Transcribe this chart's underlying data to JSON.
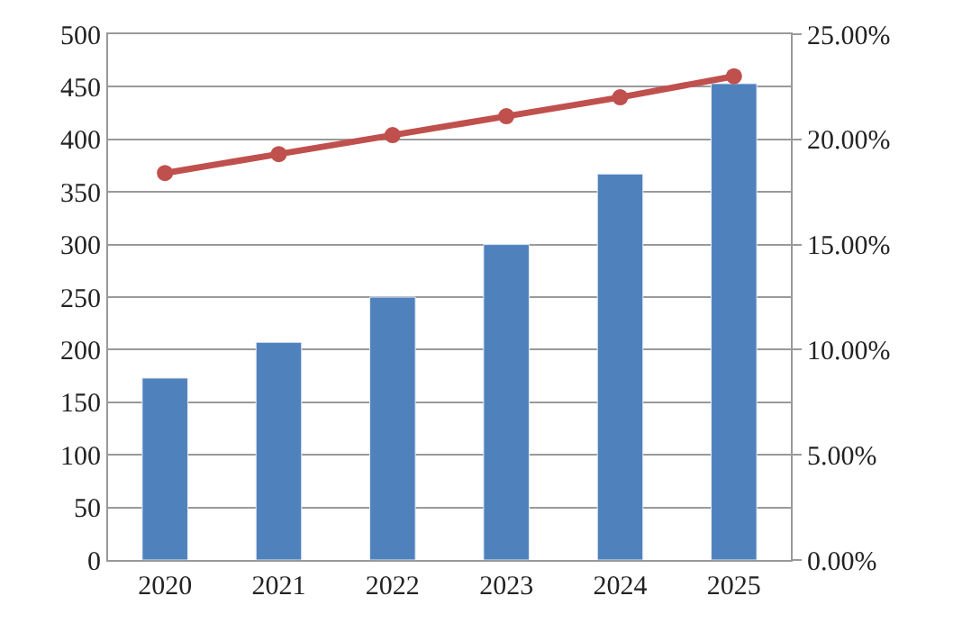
{
  "chart_data": {
    "type": "bar",
    "categories": [
      "2020",
      "2021",
      "2022",
      "2023",
      "2024",
      "2025"
    ],
    "series": [
      {
        "color": "#4f81bd",
        "values": [
          173,
          207,
          250,
          300,
          367,
          453
        ]
      },
      {
        "type": "line",
        "axis": "y2",
        "color": "#c0504d",
        "marker": "circle",
        "values": [
          18.4,
          19.3,
          20.2,
          21.1,
          22.0,
          23.0
        ]
      }
    ],
    "ylim": [
      0,
      500
    ],
    "yticks": [
      0,
      50,
      100,
      150,
      200,
      250,
      300,
      350,
      400,
      450,
      500
    ],
    "y2lim": [
      0,
      25
    ],
    "y2ticks": [
      {
        "value": 0,
        "label": "0.00%"
      },
      {
        "value": 5,
        "label": "5.00%"
      },
      {
        "value": 10,
        "label": "10.00%"
      },
      {
        "value": 15,
        "label": "15.00%"
      },
      {
        "value": 20,
        "label": "20.00%"
      },
      {
        "value": 25,
        "label": "25.00%"
      }
    ],
    "grid": "y"
  }
}
